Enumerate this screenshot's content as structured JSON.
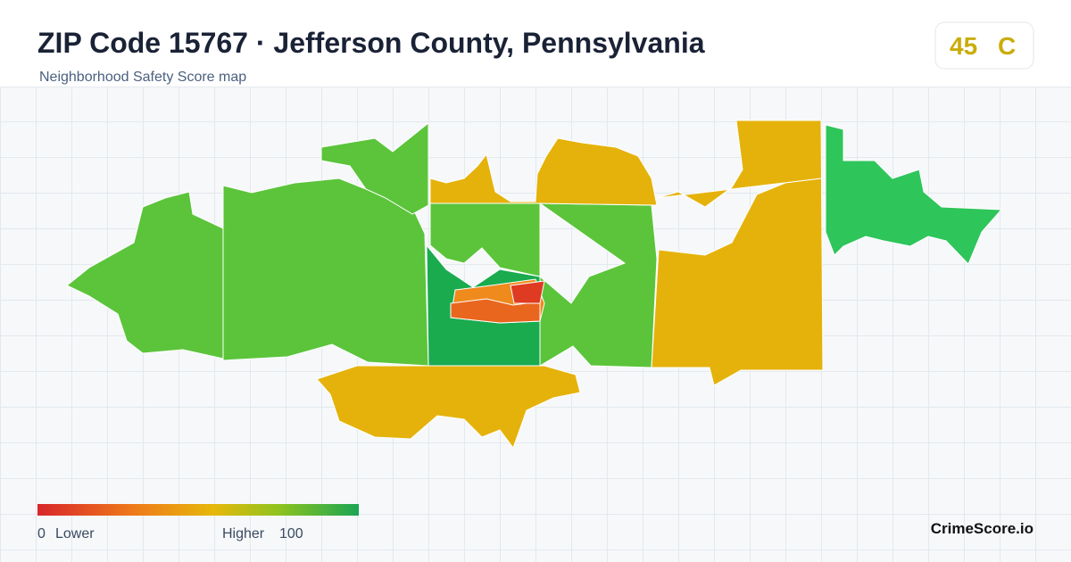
{
  "header": {
    "title": "ZIP Code 15767 · Jefferson County, Pennsylvania",
    "subtitle": "Neighborhood Safety Score map"
  },
  "score": {
    "value": 45,
    "grade": "C"
  },
  "legend": {
    "min": 0,
    "min_label": "Lower",
    "max_label": "Higher",
    "max": 100
  },
  "brand": "CrimeScore.io"
}
